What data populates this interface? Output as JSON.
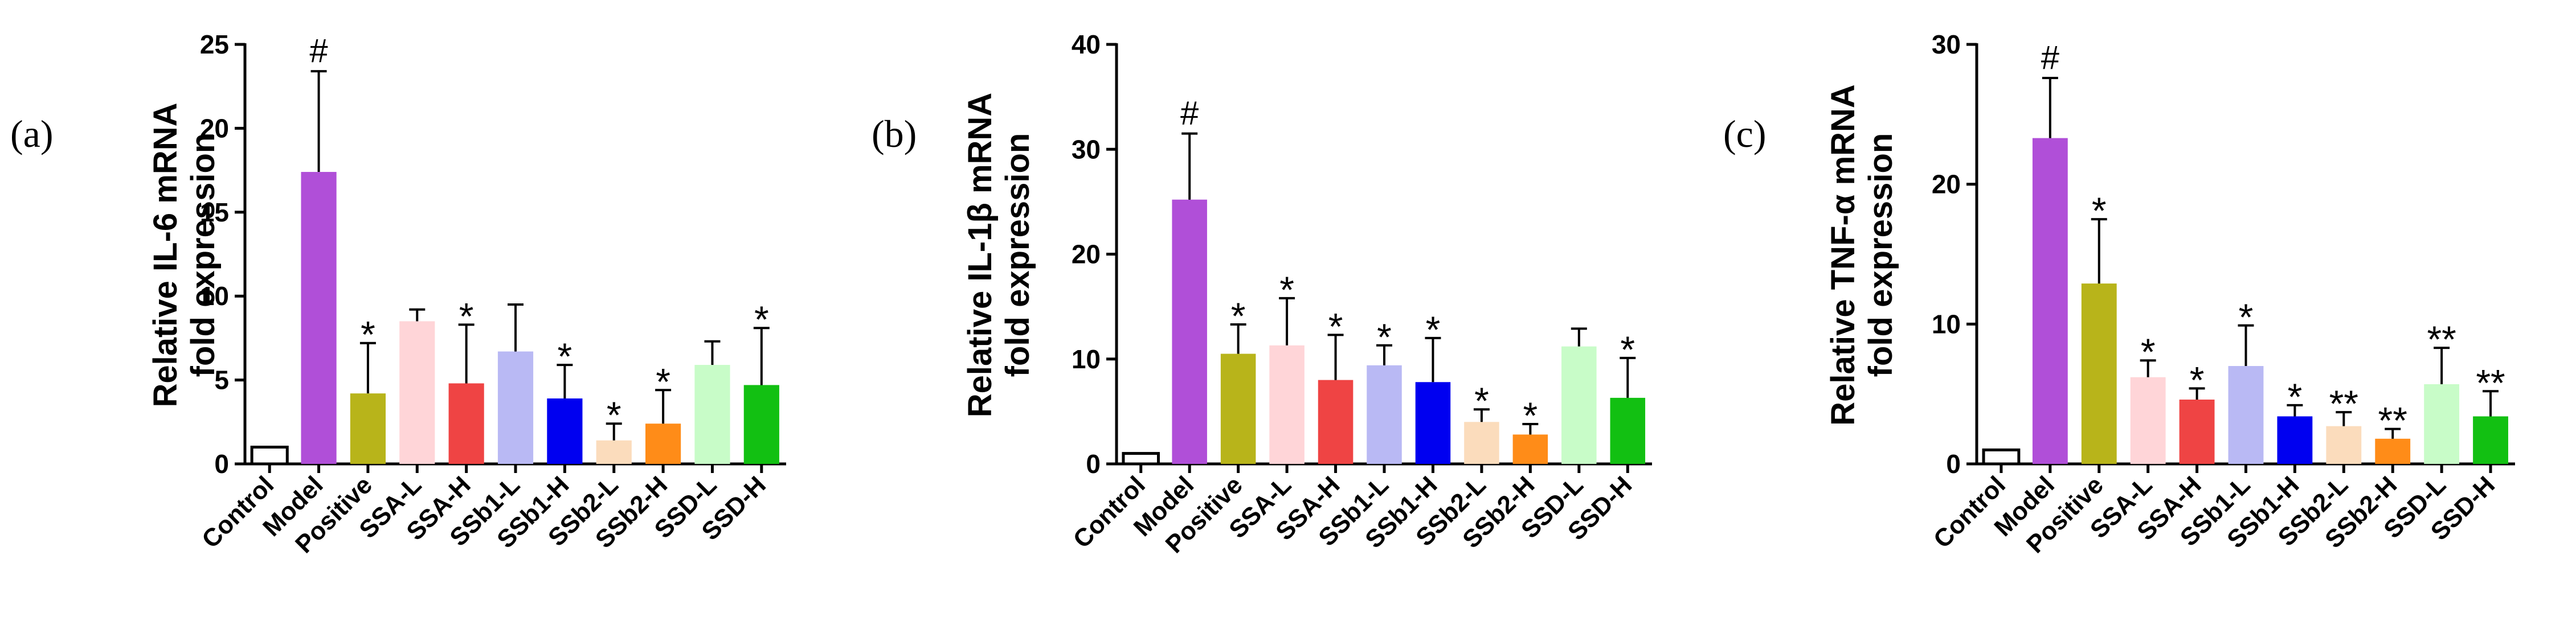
{
  "chart_data": [
    {
      "type": "bar",
      "panel_label": "(a)",
      "ylabel": [
        "Relative IL-6 mRNA",
        "fold expression"
      ],
      "ylim": [
        0,
        25
      ],
      "yticks": [
        0,
        5,
        10,
        15,
        20,
        25
      ],
      "categories": [
        "Control",
        "Model",
        "Positive",
        "SSA-L",
        "SSA-H",
        "SSb1-L",
        "SSb1-H",
        "SSb2-L",
        "SSb2-H",
        "SSD-L",
        "SSD-H"
      ],
      "values": [
        1.0,
        17.4,
        4.2,
        8.5,
        4.8,
        6.7,
        3.9,
        1.4,
        2.4,
        5.9,
        4.7
      ],
      "errors": [
        0.0,
        6.0,
        3.0,
        0.7,
        3.5,
        2.8,
        2.0,
        1.0,
        2.0,
        1.4,
        3.4
      ],
      "annotations": [
        "",
        "#",
        "*",
        "",
        "*",
        "",
        "*",
        "*",
        "*",
        "",
        "*"
      ]
    },
    {
      "type": "bar",
      "panel_label": "(b)",
      "ylabel": [
        "Relative IL-1β mRNA",
        "fold expression"
      ],
      "ylim": [
        0,
        40
      ],
      "yticks": [
        0,
        10,
        20,
        30,
        40
      ],
      "categories": [
        "Control",
        "Model",
        "Positive",
        "SSA-L",
        "SSA-H",
        "SSb1-L",
        "SSb1-H",
        "SSb2-L",
        "SSb2-H",
        "SSD-L",
        "SSD-H"
      ],
      "values": [
        1.0,
        25.2,
        10.5,
        11.3,
        8.0,
        9.4,
        7.8,
        4.0,
        2.8,
        11.2,
        6.3
      ],
      "errors": [
        0.0,
        6.3,
        2.8,
        4.5,
        4.3,
        1.9,
        4.2,
        1.2,
        1.0,
        1.7,
        3.8
      ],
      "annotations": [
        "",
        "#",
        "*",
        "*",
        "*",
        "*",
        "*",
        "*",
        "*",
        "",
        "*"
      ]
    },
    {
      "type": "bar",
      "panel_label": "(c)",
      "ylabel": [
        "Relative TNF-α mRNA",
        "fold expression"
      ],
      "ylim": [
        0,
        30
      ],
      "yticks": [
        0,
        10,
        20,
        30
      ],
      "categories": [
        "Control",
        "Model",
        "Positive",
        "SSA-L",
        "SSA-H",
        "SSb1-L",
        "SSb1-H",
        "SSb2-L",
        "SSb2-H",
        "SSD-L",
        "SSD-H"
      ],
      "values": [
        1.0,
        23.3,
        12.9,
        6.2,
        4.6,
        7.0,
        3.4,
        2.7,
        1.8,
        5.7,
        3.4
      ],
      "errors": [
        0.0,
        4.3,
        4.6,
        1.2,
        0.8,
        2.9,
        0.8,
        1.0,
        0.7,
        2.6,
        1.8
      ],
      "annotations": [
        "",
        "#",
        "*",
        "*",
        "*",
        "*",
        "*",
        "**",
        "**",
        "**",
        "**"
      ]
    }
  ],
  "colors": {
    "Control": "#ffffff",
    "Model": "#b04fd8",
    "Positive": "#b8b41a",
    "SSA-L": "#ffd5d8",
    "SSA-H": "#ef4444",
    "SSb1-L": "#b9b9f4",
    "SSb1-H": "#0000f0",
    "SSb2-L": "#fbdcbc",
    "SSb2-H": "#ff8c18",
    "SSD-L": "#c8fcc8",
    "SSD-H": "#12c012"
  }
}
